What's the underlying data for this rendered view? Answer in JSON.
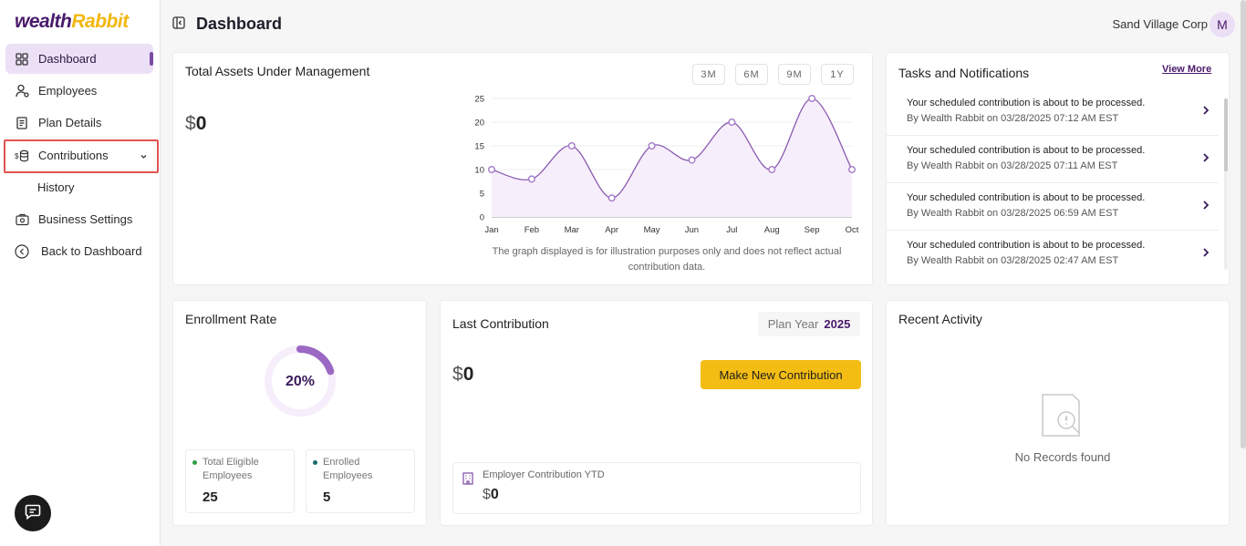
{
  "app": {
    "logo_main": "wealth",
    "logo_accent": "Rabbit"
  },
  "sidebar": {
    "items": [
      {
        "label": "Dashboard",
        "icon": "grid-icon"
      },
      {
        "label": "Employees",
        "icon": "user-icon"
      },
      {
        "label": "Plan Details",
        "icon": "document-icon"
      },
      {
        "label": "Contributions",
        "icon": "coins-icon"
      },
      {
        "label": "History"
      },
      {
        "label": "Business Settings",
        "icon": "briefcase-gear-icon"
      },
      {
        "label": "Back to Dashboard",
        "icon": "back-arrow-icon"
      }
    ]
  },
  "header": {
    "title": "Dashboard",
    "company": "Sand Village Corp",
    "avatar_initial": "M"
  },
  "assets": {
    "title": "Total Assets Under Management",
    "currency": "$",
    "amount": "0",
    "ranges": [
      "3M",
      "6M",
      "9M",
      "1Y"
    ],
    "note": "The graph displayed is for illustration purposes only and does not reflect actual contribution data."
  },
  "chart_data": {
    "type": "area",
    "categories": [
      "Jan",
      "Feb",
      "Mar",
      "Apr",
      "May",
      "Jun",
      "Jul",
      "Aug",
      "Sep",
      "Oct"
    ],
    "values": [
      10,
      8,
      15,
      4,
      15,
      12,
      20,
      10,
      25,
      10
    ],
    "yticks": [
      0,
      5,
      10,
      15,
      20,
      25
    ],
    "ylim": [
      0,
      25
    ],
    "color": "#8a5cb0",
    "fill": "#f7eefb"
  },
  "tasks": {
    "title": "Tasks and Notifications",
    "view_more": "View More",
    "items": [
      {
        "text": "Your scheduled contribution is about to be processed.",
        "meta": "By Wealth Rabbit on 03/28/2025 07:12 AM EST"
      },
      {
        "text": "Your scheduled contribution is about to be processed.",
        "meta": "By Wealth Rabbit on 03/28/2025 07:11 AM EST"
      },
      {
        "text": "Your scheduled contribution is about to be processed.",
        "meta": "By Wealth Rabbit on 03/28/2025 06:59 AM EST"
      },
      {
        "text": "Your scheduled contribution is about to be processed.",
        "meta": "By Wealth Rabbit on 03/28/2025 02:47 AM EST"
      }
    ]
  },
  "enrollment": {
    "title": "Enrollment Rate",
    "rate_label": "20%",
    "rate": 0.2,
    "eligible_label": "Total Eligible Employees",
    "eligible_value": "25",
    "enrolled_label": "Enrolled Employees",
    "enrolled_value": "5",
    "eligible_color": "#2ea043",
    "enrolled_color": "#1d6b6b"
  },
  "last_contribution": {
    "title": "Last Contribution",
    "plan_year_label": "Plan Year",
    "plan_year": "2025",
    "currency": "$",
    "amount": "0",
    "button": "Make New Contribution",
    "ytd_label": "Employer Contribution YTD",
    "ytd_currency": "$",
    "ytd_amount": "0"
  },
  "recent_activity": {
    "title": "Recent Activity",
    "empty": "No Records found"
  }
}
